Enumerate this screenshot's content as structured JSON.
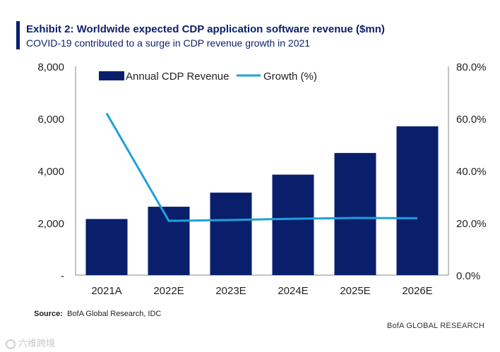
{
  "header": {
    "title": "Exhibit 2: Worldwide expected CDP application software revenue ($mn)",
    "subtitle": "COVID-19 contributed to a surge in CDP revenue growth in 2021"
  },
  "footer": {
    "source_label": "Source:",
    "source_text": "BofA Global Research, IDC",
    "brand": "BofA GLOBAL RESEARCH",
    "watermark": "六维跨境"
  },
  "colors": {
    "bar": "#0a1f6b",
    "line": "#1fa0dc",
    "accent": "#0a1f6b"
  },
  "chart_data": {
    "type": "bar",
    "categories": [
      "2021A",
      "2022E",
      "2023E",
      "2024E",
      "2025E",
      "2026E"
    ],
    "series": [
      {
        "name": "Annual CDP Revenue",
        "type": "bar",
        "axis": "left",
        "values": [
          2150,
          2620,
          3160,
          3850,
          4680,
          5700
        ]
      },
      {
        "name": "Growth (%)",
        "type": "line",
        "axis": "right",
        "values": [
          62.0,
          20.8,
          21.1,
          21.6,
          21.9,
          21.8
        ]
      }
    ],
    "y_left": {
      "range": [
        0,
        8000
      ],
      "ticks": [
        0,
        2000,
        4000,
        6000,
        8000
      ],
      "tick_labels": [
        "-",
        "2,000",
        "4,000",
        "6,000",
        "8,000"
      ]
    },
    "y_right": {
      "range": [
        0,
        80
      ],
      "ticks": [
        0,
        20,
        40,
        60,
        80
      ],
      "tick_labels": [
        "0.0%",
        "20.0%",
        "40.0%",
        "60.0%",
        "80.0%"
      ]
    },
    "grid": false,
    "legend_position": "top"
  }
}
